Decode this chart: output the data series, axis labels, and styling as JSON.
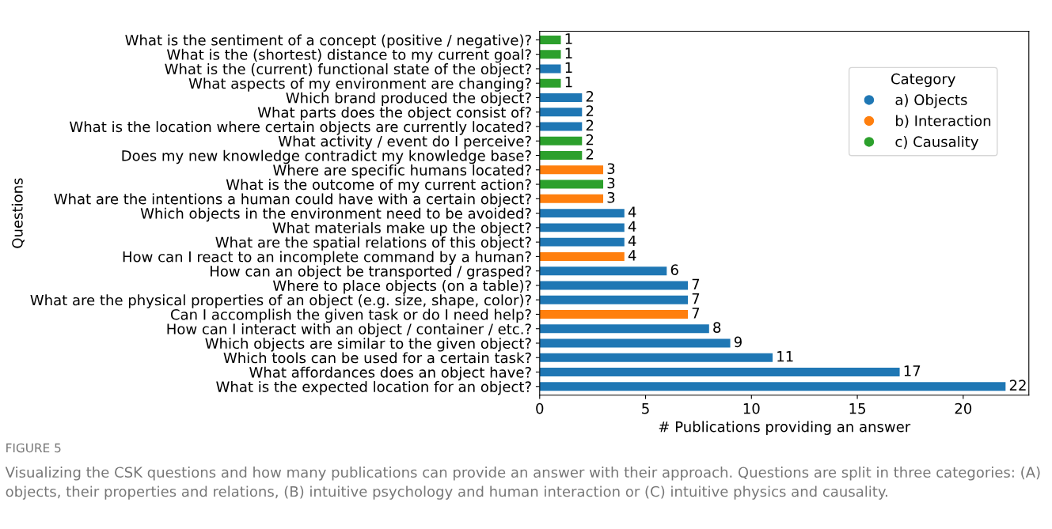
{
  "chart_data": {
    "type": "bar",
    "orientation": "horizontal",
    "xlabel": "# Publications providing an answer",
    "ylabel": "Questions",
    "categories": [
      "What is the sentiment of a concept (positive / negative)?",
      "What is the (shortest) distance to my current goal?",
      "What is the (current) functional state of the object?",
      "What aspects of my environment are changing?",
      "Which brand produced the object?",
      "What parts does the object consist of?",
      "What is the location where certain objects are currently located?",
      "What activity / event do I perceive?",
      "Does my new knowledge contradict my knowledge base?",
      "Where are specific humans located?",
      "What is the outcome of my current action?",
      "What are the intentions a human could have with a certain object?",
      "Which objects in the environment need to be avoided?",
      "What materials make up the object?",
      "What are the spatial relations of this object?",
      "How can I react to an incomplete command by a human?",
      "How can an object be transported / grasped?",
      "Where to place objects (on a table)?",
      "What are the physical properties of an object (e.g. size, shape, color)?",
      "Can I accomplish the given task or do I need help?",
      "How can I interact with an object / container / etc.?",
      "Which objects are similar to the given object?",
      "Which tools can be used for a certain task?",
      "What affordances does an object have?",
      "What is the expected location for an object?"
    ],
    "series": [
      {
        "name": "a) Objects",
        "color": "#1f77b4",
        "values": [
          null,
          null,
          1,
          null,
          2,
          2,
          2,
          null,
          null,
          null,
          null,
          null,
          4,
          4,
          4,
          null,
          6,
          7,
          7,
          null,
          8,
          9,
          11,
          17,
          22
        ]
      },
      {
        "name": "b) Interaction",
        "color": "#ff7f0e",
        "values": [
          null,
          null,
          null,
          null,
          null,
          null,
          null,
          null,
          null,
          3,
          null,
          3,
          null,
          null,
          null,
          4,
          null,
          null,
          null,
          7,
          null,
          null,
          null,
          null,
          null
        ]
      },
      {
        "name": "c) Causality",
        "color": "#2ca02c",
        "values": [
          1,
          1,
          null,
          1,
          null,
          null,
          null,
          2,
          2,
          null,
          3,
          null,
          null,
          null,
          null,
          null,
          null,
          null,
          null,
          null,
          null,
          null,
          null,
          null,
          null
        ]
      }
    ],
    "xlim": [
      0,
      23.1
    ],
    "xticks": [
      0,
      5,
      10,
      15,
      20
    ],
    "data_labels": true,
    "grid": false,
    "legend": "top right",
    "legend_title": "Category",
    "marker": "circle",
    "annotations": [
      "FIGURE 5",
      "Visualizing the CSK questions and how many publications can provide an answer with their approach. Questions are split in three categories: (A) objects, their properties and relations, (B) intuitive psychology and human interaction or (C) intuitive physics and causality."
    ]
  }
}
